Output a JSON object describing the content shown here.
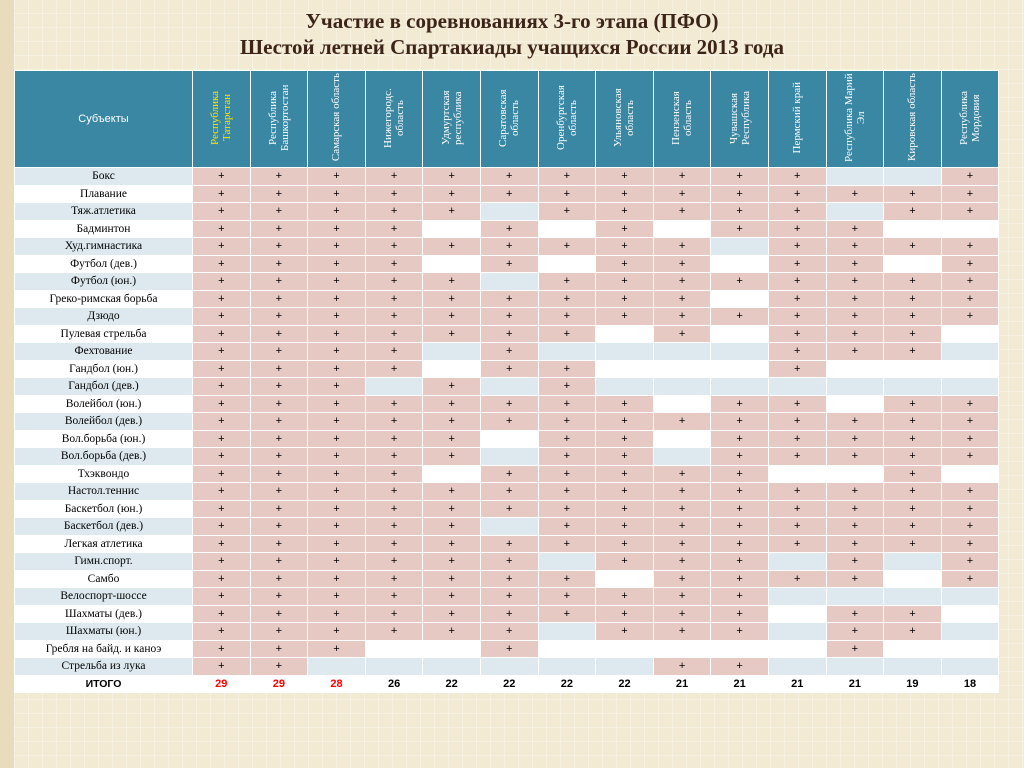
{
  "title": {
    "line1": "Участие в соревнованиях 3-го этапа (ПФО)",
    "line2": "Шестой летней Спартакиады учащихся России 2013 года"
  },
  "table": {
    "subject_header": "Субъекты",
    "regions": [
      "Республика Татарстан",
      "Республика Башкортостан",
      "Самарская область",
      "Нижегородс. область",
      "Удмуртская республика",
      "Саратовская область",
      "Оренбургская область",
      "Ульяновская область",
      "Пензенская область",
      "Чувашская Республика",
      "Пермский край",
      "Республика Марий Эл",
      "Кировская область",
      "Республика Мордовия"
    ],
    "rows": [
      {
        "sport": "Бокс",
        "cells": [
          "+",
          "+",
          "+",
          "+",
          "+",
          "+",
          "+",
          "+",
          "+",
          "+",
          "+",
          "",
          "",
          "+"
        ]
      },
      {
        "sport": "Плавание",
        "cells": [
          "+",
          "+",
          "+",
          "+",
          "+",
          "+",
          "+",
          "+",
          "+",
          "+",
          "+",
          "+",
          "+",
          "+"
        ]
      },
      {
        "sport": "Тяж.атлетика",
        "cells": [
          "+",
          "+",
          "+",
          "+",
          "+",
          "",
          "+",
          "+",
          "+",
          "+",
          "+",
          "",
          "+",
          "+"
        ]
      },
      {
        "sport": "Бадминтон",
        "cells": [
          "+",
          "+",
          "+",
          "+",
          "",
          "+",
          "",
          "+",
          "",
          "+",
          "+",
          "+",
          "",
          ""
        ]
      },
      {
        "sport": "Худ.гимнастика",
        "cells": [
          "+",
          "+",
          "+",
          "+",
          "+",
          "+",
          "+",
          "+",
          "+",
          "",
          "+",
          "+",
          "+",
          "+"
        ]
      },
      {
        "sport": "Футбол (дев.)",
        "cells": [
          "+",
          "+",
          "+",
          "+",
          "",
          "+",
          "",
          "+",
          "+",
          "",
          "+",
          "+",
          "",
          "+"
        ]
      },
      {
        "sport": "Футбол (юн.)",
        "cells": [
          "+",
          "+",
          "+",
          "+",
          "+",
          "",
          "+",
          "+",
          "+",
          "+",
          "+",
          "+",
          "+",
          "+"
        ]
      },
      {
        "sport": "Греко-римская борьба",
        "cells": [
          "+",
          "+",
          "+",
          "+",
          "+",
          "+",
          "+",
          "+",
          "+",
          "",
          "+",
          "+",
          "+",
          "+"
        ]
      },
      {
        "sport": "Дзюдо",
        "cells": [
          "+",
          "+",
          "+",
          "+",
          "+",
          "+",
          "+",
          "+",
          "+",
          "+",
          "+",
          "+",
          "+",
          "+"
        ]
      },
      {
        "sport": "Пулевая стрельба",
        "cells": [
          "+",
          "+",
          "+",
          "+",
          "+",
          "+",
          "+",
          "",
          "+",
          "",
          "+",
          "+",
          "+",
          ""
        ]
      },
      {
        "sport": "Фехтование",
        "cells": [
          "+",
          "+",
          "+",
          "+",
          "",
          "+",
          "",
          "",
          "",
          "",
          "+",
          "+",
          "+",
          ""
        ]
      },
      {
        "sport": "Гандбол (юн.)",
        "cells": [
          "+",
          "+",
          "+",
          "+",
          "",
          "+",
          "+",
          "",
          "",
          "",
          "+",
          "",
          "",
          ""
        ]
      },
      {
        "sport": "Гандбол (дев.)",
        "cells": [
          "+",
          "+",
          "+",
          "",
          "+",
          "",
          "+",
          "",
          "",
          "",
          "",
          "",
          "",
          ""
        ]
      },
      {
        "sport": "Волейбол (юн.)",
        "cells": [
          "+",
          "+",
          "+",
          "+",
          "+",
          "+",
          "+",
          "+",
          "",
          "+",
          "+",
          "",
          "+",
          "+"
        ]
      },
      {
        "sport": "Волейбол (дев.)",
        "cells": [
          "+",
          "+",
          "+",
          "+",
          "+",
          "+",
          "+",
          "+",
          "+",
          "+",
          "+",
          "+",
          "+",
          "+"
        ]
      },
      {
        "sport": "Вол.борьба (юн.)",
        "cells": [
          "+",
          "+",
          "+",
          "+",
          "+",
          "",
          "+",
          "+",
          "",
          "+",
          "+",
          "+",
          "+",
          "+"
        ]
      },
      {
        "sport": "Вол.борьба (дев.)",
        "cells": [
          "+",
          "+",
          "+",
          "+",
          "+",
          "",
          "+",
          "+",
          "",
          "+",
          "+",
          "+",
          "+",
          "+"
        ]
      },
      {
        "sport": "Тхэквондо",
        "cells": [
          "+",
          "+",
          "+",
          "+",
          "",
          "+",
          "+",
          "+",
          "+",
          "+",
          "",
          "",
          "+",
          ""
        ]
      },
      {
        "sport": "Настол.теннис",
        "cells": [
          "+",
          "+",
          "+",
          "+",
          "+",
          "+",
          "+",
          "+",
          "+",
          "+",
          "+",
          "+",
          "+",
          "+"
        ]
      },
      {
        "sport": "Баскетбол (юн.)",
        "cells": [
          "+",
          "+",
          "+",
          "+",
          "+",
          "+",
          "+",
          "+",
          "+",
          "+",
          "+",
          "+",
          "+",
          "+"
        ]
      },
      {
        "sport": "Баскетбол (дев.)",
        "cells": [
          "+",
          "+",
          "+",
          "+",
          "+",
          "",
          "+",
          "+",
          "+",
          "+",
          "+",
          "+",
          "+",
          "+"
        ]
      },
      {
        "sport": "Легкая атлетика",
        "cells": [
          "+",
          "+",
          "+",
          "+",
          "+",
          "+",
          "+",
          "+",
          "+",
          "+",
          "+",
          "+",
          "+",
          "+"
        ]
      },
      {
        "sport": "Гимн.спорт.",
        "cells": [
          "+",
          "+",
          "+",
          "+",
          "+",
          "+",
          "",
          "+",
          "+",
          "+",
          "",
          "+",
          "",
          "+"
        ]
      },
      {
        "sport": "Самбо",
        "cells": [
          "+",
          "+",
          "+",
          "+",
          "+",
          "+",
          "+",
          "",
          "+",
          "+",
          "+",
          "+",
          "",
          "+"
        ]
      },
      {
        "sport": "Велоспорт-шоссе",
        "cells": [
          "+",
          "+",
          "+",
          "+",
          "+",
          "+",
          "+",
          "+",
          "+",
          "+",
          "",
          "",
          "",
          ""
        ]
      },
      {
        "sport": "Шахматы (дев.)",
        "cells": [
          "+",
          "+",
          "+",
          "+",
          "+",
          "+",
          "+",
          "+",
          "+",
          "+",
          "",
          "+",
          "+",
          ""
        ]
      },
      {
        "sport": "Шахматы (юн.)",
        "cells": [
          "+",
          "+",
          "+",
          "+",
          "+",
          "+",
          "",
          "+",
          "+",
          "+",
          "",
          "+",
          "+",
          ""
        ]
      },
      {
        "sport": "Гребля на байд. и каноэ",
        "cells": [
          "+",
          "+",
          "+",
          "",
          "",
          "+",
          "",
          "",
          "",
          "",
          "",
          "+",
          "",
          ""
        ]
      },
      {
        "sport": "Стрельба из лука",
        "cells": [
          "+",
          "+",
          "",
          "",
          "",
          "",
          "",
          "",
          "+",
          "+",
          "",
          "",
          "",
          ""
        ]
      }
    ],
    "total": {
      "label": "ИТОГО",
      "values": [
        "29",
        "29",
        "28",
        "26",
        "22",
        "22",
        "22",
        "22",
        "21",
        "21",
        "21",
        "21",
        "19",
        "18"
      ],
      "highlight_count": 3
    }
  },
  "colors": {
    "header_bg": "#3a87a4",
    "first_region_text": "#ffe600",
    "plus_cell_bg": "#e7c9c3",
    "total_highlight": "#ff0000",
    "title_color": "#3c2418"
  }
}
